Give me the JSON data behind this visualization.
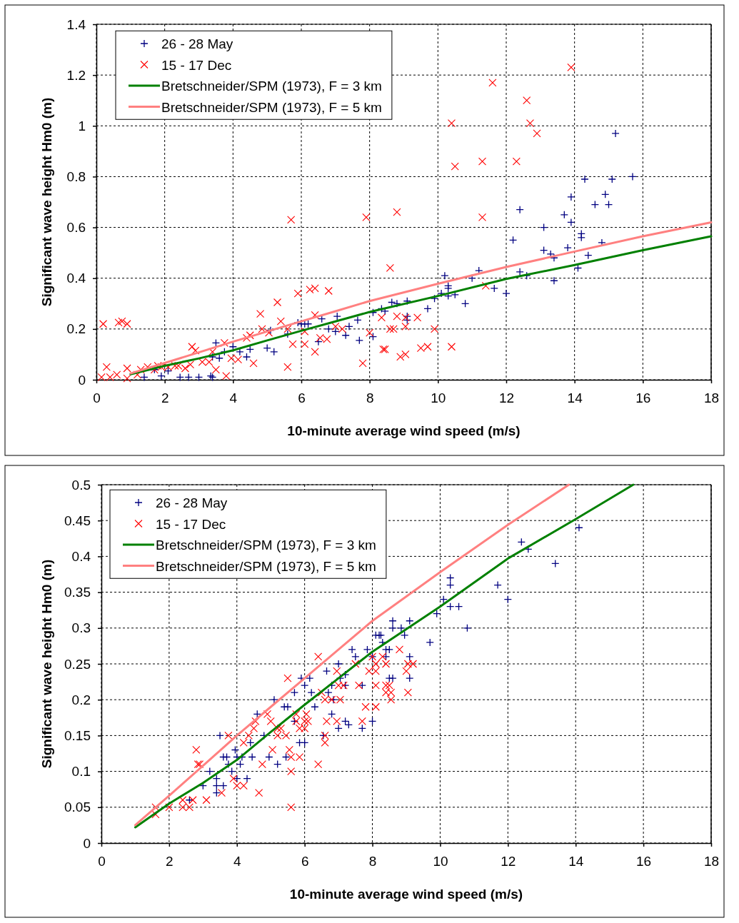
{
  "chart_data": [
    {
      "type": "scatter",
      "xlabel": "10-minute average wind speed (m/s)",
      "ylabel": "Significant wave height Hm0 (m)",
      "xlim": [
        0,
        18
      ],
      "xticks": [
        0,
        2,
        4,
        6,
        8,
        10,
        12,
        14,
        16,
        18
      ],
      "ylim": [
        0,
        1.4
      ],
      "yticks": [
        0,
        0.2,
        0.4,
        0.6,
        0.8,
        1,
        1.2,
        1.4
      ],
      "grid": true,
      "legend": "top left",
      "series": [
        {
          "name": "26 - 28 May",
          "color": "#000080",
          "marker": "cross",
          "x": [
            1.4,
            1.7,
            1.9,
            2.1,
            2.45,
            2.7,
            3.0,
            3.35,
            3.4,
            3.5,
            3.4,
            3.6,
            3.75,
            4.0,
            4.2,
            4.4,
            4.5,
            5.0,
            5.1,
            5.2,
            5.6,
            5.9,
            6.0,
            6.1,
            6.2,
            6.6,
            6.5,
            6.8,
            7.0,
            7.05,
            7.3,
            7.4,
            7.65,
            7.7,
            8.1,
            8.1,
            8.35,
            8.65,
            8.45,
            8.8,
            9.1,
            9.1,
            9.1,
            9.7,
            9.9,
            10.1,
            10.2,
            10.3,
            10.3,
            10.3,
            10.5,
            10.8,
            11.0,
            11.2,
            11.65,
            12.0,
            12.2,
            12.4,
            12.4,
            12.6,
            13.1,
            13.1,
            13.3,
            13.4,
            13.4,
            13.7,
            13.8,
            13.9,
            13.9,
            14.1,
            14.2,
            14.2,
            14.3,
            14.4,
            14.6,
            14.8,
            14.9,
            15.0,
            15.1,
            15.2,
            15.7
          ],
          "values": [
            0.01,
            0.04,
            0.015,
            0.035,
            0.01,
            0.01,
            0.01,
            0.015,
            0.01,
            0.145,
            0.09,
            0.085,
            0.11,
            0.13,
            0.11,
            0.09,
            0.12,
            0.125,
            0.195,
            0.11,
            0.18,
            0.225,
            0.22,
            0.22,
            0.22,
            0.24,
            0.15,
            0.2,
            0.19,
            0.25,
            0.175,
            0.21,
            0.235,
            0.155,
            0.265,
            0.17,
            0.28,
            0.305,
            0.27,
            0.3,
            0.31,
            0.25,
            0.235,
            0.28,
            0.32,
            0.34,
            0.41,
            0.37,
            0.36,
            0.33,
            0.335,
            0.3,
            0.4,
            0.43,
            0.36,
            0.34,
            0.55,
            0.67,
            0.425,
            0.41,
            0.6,
            0.51,
            0.495,
            0.48,
            0.39,
            0.65,
            0.52,
            0.72,
            0.62,
            0.44,
            0.575,
            0.56,
            0.79,
            0.49,
            0.69,
            0.54,
            0.73,
            0.69,
            0.79,
            0.97,
            0.8
          ]
        },
        {
          "name": "15 - 17 Dec",
          "color": "#ff0000",
          "marker": "x",
          "x": [
            0.2,
            0.65,
            0.75,
            0.9,
            0.3,
            0.15,
            0.4,
            0.6,
            0.9,
            0.9,
            1.2,
            1.3,
            1.5,
            1.7,
            1.8,
            1.9,
            2.1,
            2.3,
            2.4,
            2.6,
            2.75,
            2.8,
            2.9,
            3.1,
            3.3,
            3.4,
            3.5,
            3.75,
            3.8,
            3.95,
            4.15,
            4.4,
            4.5,
            4.6,
            4.8,
            4.85,
            5.05,
            5.3,
            5.4,
            5.6,
            5.6,
            5.7,
            5.75,
            5.9,
            6.1,
            6.1,
            6.25,
            6.4,
            6.4,
            6.4,
            6.55,
            6.8,
            6.75,
            7.0,
            7.2,
            7.8,
            7.9,
            8.0,
            8.35,
            8.4,
            8.6,
            8.6,
            8.8,
            8.8,
            8.7,
            9.05,
            9.05,
            9.4,
            8.45,
            8.9,
            9.05,
            9.5,
            9.7,
            9.9,
            10.4,
            10.4,
            10.5,
            11.3,
            11.3,
            11.4,
            11.6,
            12.3,
            12.6,
            12.7,
            12.9,
            13.9
          ],
          "values": [
            0.22,
            0.225,
            0.23,
            0.22,
            0.05,
            0.01,
            0.01,
            0.02,
            0.045,
            0.005,
            0.02,
            0.04,
            0.05,
            0.04,
            0.055,
            0.05,
            0.05,
            0.055,
            0.055,
            0.045,
            0.06,
            0.13,
            0.115,
            0.07,
            0.07,
            0.11,
            0.04,
            0.145,
            0.015,
            0.085,
            0.08,
            0.165,
            0.175,
            0.065,
            0.26,
            0.2,
            0.185,
            0.305,
            0.23,
            0.2,
            0.05,
            0.63,
            0.14,
            0.34,
            0.19,
            0.14,
            0.355,
            0.36,
            0.255,
            0.11,
            0.165,
            0.35,
            0.16,
            0.21,
            0.2,
            0.065,
            0.64,
            0.185,
            0.245,
            0.12,
            0.44,
            0.2,
            0.66,
            0.25,
            0.2,
            0.245,
            0.21,
            0.245,
            0.12,
            0.09,
            0.1,
            0.125,
            0.13,
            0.2,
            0.13,
            1.01,
            0.84,
            0.86,
            0.64,
            0.37,
            1.17,
            0.86,
            1.1,
            1.01,
            0.97,
            1.23
          ]
        },
        {
          "name": "Bretschneider/SPM (1973), F = 3 km",
          "type": "line",
          "color": "#008000",
          "x": [
            1,
            2,
            3,
            4,
            5,
            6,
            7,
            8,
            10,
            12,
            14,
            16,
            18
          ],
          "values": [
            0.022,
            0.055,
            0.084,
            0.116,
            0.155,
            0.193,
            0.23,
            0.267,
            0.33,
            0.397,
            0.452,
            0.51,
            0.565
          ]
        },
        {
          "name": "Bretschneider/SPM (1973), F = 5 km",
          "type": "line",
          "color": "#ff8080",
          "x": [
            1,
            2,
            3,
            4,
            5,
            6,
            7,
            8,
            10,
            12,
            14,
            16,
            18
          ],
          "values": [
            0.025,
            0.066,
            0.108,
            0.15,
            0.19,
            0.23,
            0.27,
            0.31,
            0.378,
            0.444,
            0.505,
            0.565,
            0.62
          ]
        }
      ]
    },
    {
      "type": "scatter",
      "xlabel": "10-minute average wind speed (m/s)",
      "ylabel": "Significant wave height Hm0 (m)",
      "xlim": [
        0,
        18
      ],
      "xticks": [
        0,
        2,
        4,
        6,
        8,
        10,
        12,
        14,
        16,
        18
      ],
      "ylim": [
        0,
        0.5
      ],
      "yticks": [
        0,
        0.05,
        0.1,
        0.15,
        0.2,
        0.25,
        0.3,
        0.35,
        0.4,
        0.45,
        0.5
      ],
      "grid": true,
      "legend": "top left",
      "series": [
        {
          "name": "26 - 28 May",
          "color": "#000080",
          "marker": "cross",
          "x": [
            2.6,
            3.0,
            3.2,
            3.4,
            3.4,
            3.6,
            3.4,
            3.5,
            3.6,
            3.7,
            3.75,
            3.85,
            3.95,
            4.0,
            4.1,
            4.15,
            4.0,
            4.3,
            4.4,
            4.45,
            4.6,
            4.8,
            4.95,
            5.1,
            5.2,
            5.4,
            5.5,
            5.45,
            5.7,
            5.7,
            5.9,
            6.0,
            5.85,
            6.0,
            6.15,
            6.2,
            6.3,
            6.65,
            6.7,
            6.55,
            6.8,
            6.8,
            6.85,
            7.0,
            7.05,
            7.2,
            7.2,
            7.2,
            7.3,
            7.0,
            7.4,
            7.5,
            7.7,
            7.7,
            7.85,
            8.0,
            8.0,
            8.2,
            8.3,
            8.4,
            8.5,
            8.1,
            8.25,
            8.5,
            8.4,
            8.6,
            8.6,
            8.85,
            9.1,
            8.95,
            9.1,
            8.6,
            9.1,
            9.7,
            9.9,
            10.1,
            10.3,
            10.3,
            10.3,
            10.55,
            10.8,
            11.7,
            12.0,
            12.4,
            12.6,
            13.4,
            14.1
          ],
          "values": [
            0.06,
            0.08,
            0.1,
            0.09,
            0.08,
            0.08,
            0.07,
            0.15,
            0.12,
            0.12,
            0.11,
            0.1,
            0.13,
            0.12,
            0.11,
            0.12,
            0.09,
            0.09,
            0.14,
            0.12,
            0.18,
            0.15,
            0.12,
            0.2,
            0.11,
            0.19,
            0.19,
            0.12,
            0.21,
            0.17,
            0.23,
            0.22,
            0.14,
            0.14,
            0.23,
            0.21,
            0.19,
            0.24,
            0.21,
            0.15,
            0.22,
            0.18,
            0.2,
            0.25,
            0.23,
            0.235,
            0.22,
            0.17,
            0.165,
            0.16,
            0.27,
            0.26,
            0.22,
            0.16,
            0.27,
            0.26,
            0.17,
            0.29,
            0.28,
            0.27,
            0.23,
            0.29,
            0.29,
            0.27,
            0.26,
            0.31,
            0.3,
            0.3,
            0.31,
            0.29,
            0.26,
            0.23,
            0.23,
            0.28,
            0.32,
            0.34,
            0.37,
            0.36,
            0.33,
            0.33,
            0.3,
            0.36,
            0.34,
            0.42,
            0.41,
            0.39,
            0.44
          ]
        },
        {
          "name": "15 - 17 Dec",
          "color": "#ff0000",
          "marker": "x",
          "x": [
            1.6,
            1.6,
            2.0,
            2.4,
            2.4,
            2.6,
            2.7,
            2.8,
            2.85,
            2.9,
            3.1,
            3.55,
            3.75,
            3.9,
            4.0,
            4.2,
            4.65,
            4.2,
            4.35,
            4.5,
            4.55,
            4.75,
            4.9,
            5.0,
            5.05,
            5.2,
            5.2,
            5.3,
            5.5,
            5.45,
            5.55,
            5.6,
            5.6,
            5.6,
            5.75,
            5.75,
            5.85,
            5.85,
            6.0,
            6.05,
            6.1,
            6.0,
            6.4,
            6.5,
            6.6,
            6.65,
            6.4,
            6.6,
            6.6,
            6.8,
            6.95,
            7.0,
            7.15,
            7.05,
            6.95,
            7.5,
            7.6,
            7.8,
            7.7,
            7.9,
            8.0,
            8.1,
            8.1,
            8.4,
            8.1,
            8.3,
            8.4,
            8.8,
            9.0,
            9.05,
            9.2,
            8.4,
            8.5,
            8.55,
            8.55,
            9.05,
            8.1
          ],
          "values": [
            0.05,
            0.04,
            0.05,
            0.06,
            0.05,
            0.05,
            0.06,
            0.13,
            0.11,
            0.11,
            0.06,
            0.07,
            0.15,
            0.09,
            0.08,
            0.08,
            0.07,
            0.14,
            0.15,
            0.16,
            0.17,
            0.11,
            0.18,
            0.17,
            0.13,
            0.16,
            0.15,
            0.16,
            0.23,
            0.15,
            0.13,
            0.12,
            0.1,
            0.05,
            0.18,
            0.17,
            0.16,
            0.12,
            0.17,
            0.18,
            0.17,
            0.16,
            0.26,
            0.21,
            0.2,
            0.17,
            0.11,
            0.15,
            0.14,
            0.2,
            0.24,
            0.22,
            0.22,
            0.2,
            0.17,
            0.25,
            0.22,
            0.19,
            0.17,
            0.24,
            0.26,
            0.25,
            0.22,
            0.21,
            0.24,
            0.26,
            0.25,
            0.27,
            0.24,
            0.25,
            0.25,
            0.22,
            0.22,
            0.21,
            0.2,
            0.21,
            0.19
          ]
        },
        {
          "name": "Bretschneider/SPM (1973), F = 3 km",
          "type": "line",
          "color": "#008000",
          "x": [
            1,
            2,
            3,
            4,
            5,
            6,
            7,
            8,
            10,
            12,
            14,
            15.7
          ],
          "values": [
            0.022,
            0.055,
            0.084,
            0.116,
            0.155,
            0.193,
            0.23,
            0.267,
            0.33,
            0.397,
            0.452,
            0.5
          ]
        },
        {
          "name": "Bretschneider/SPM (1973), F = 5 km",
          "type": "line",
          "color": "#ff8080",
          "x": [
            1,
            2,
            3,
            4,
            5,
            6,
            7,
            8,
            10,
            12,
            13.8
          ],
          "values": [
            0.025,
            0.066,
            0.108,
            0.15,
            0.19,
            0.23,
            0.27,
            0.31,
            0.378,
            0.444,
            0.5
          ]
        }
      ]
    }
  ]
}
